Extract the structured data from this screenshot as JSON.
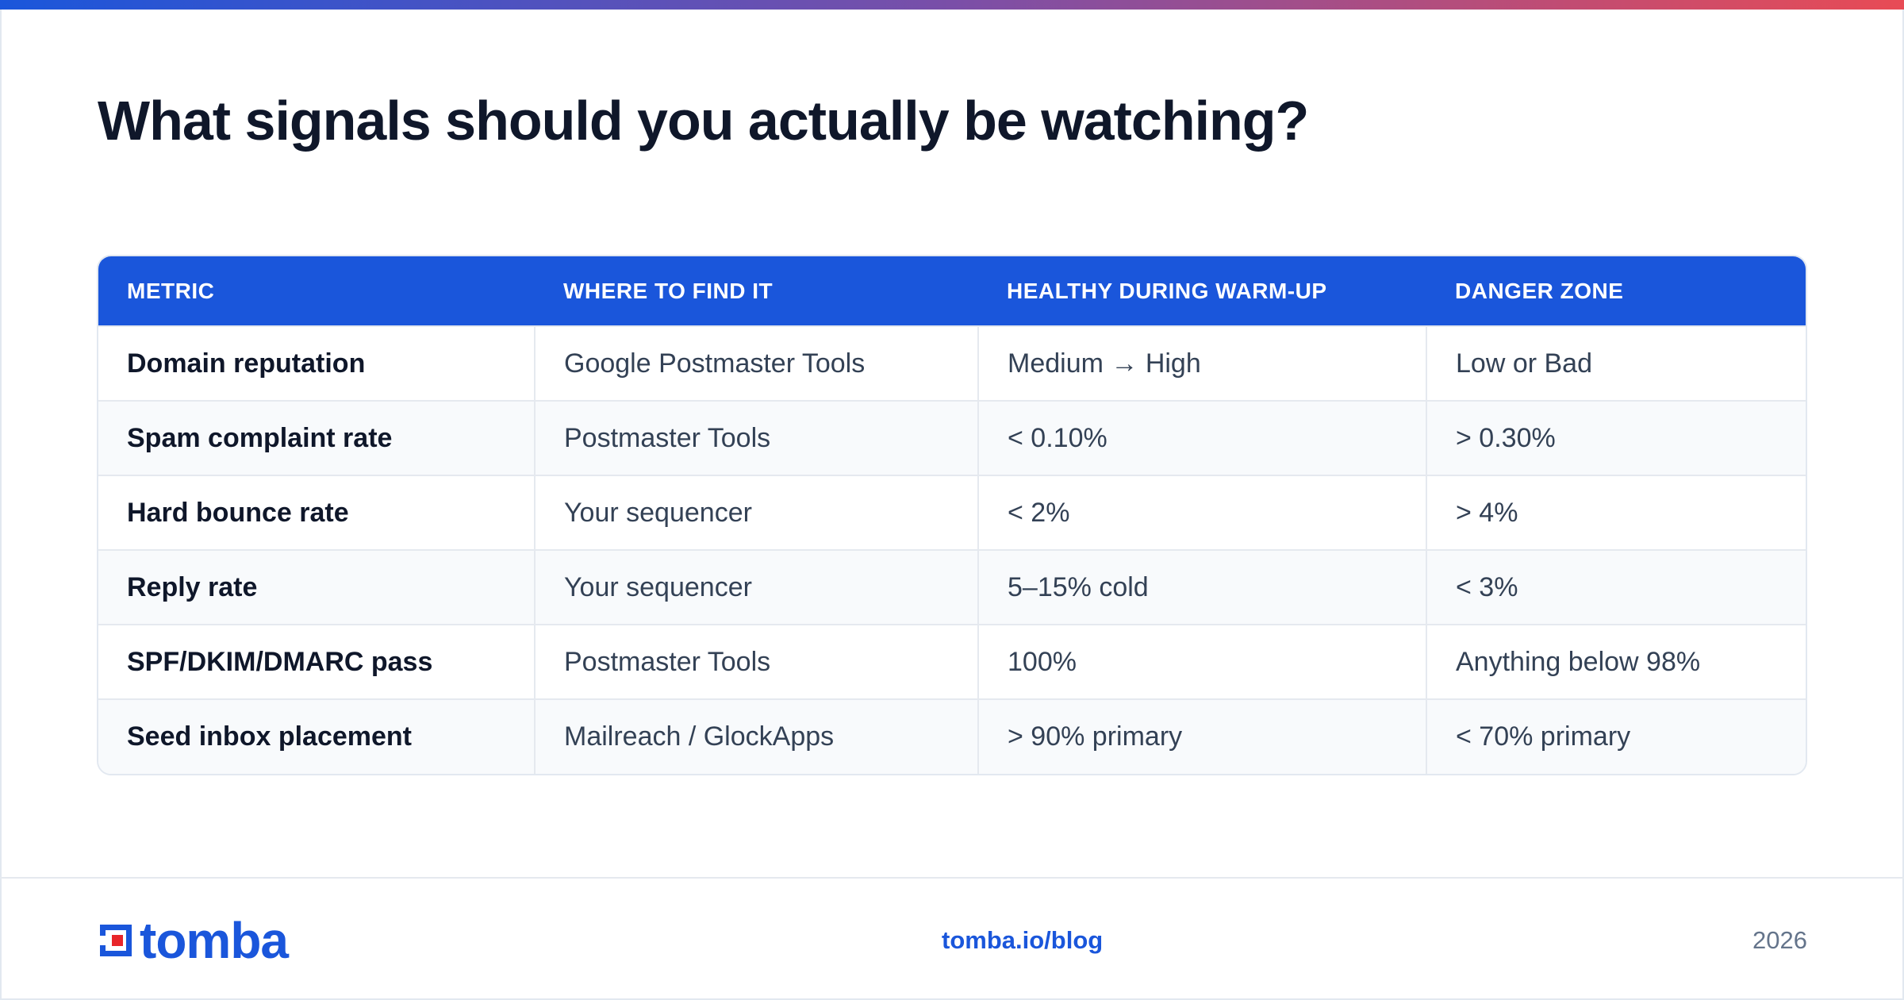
{
  "page": {
    "title": "What signals should you actually be watching?",
    "accent_gradient": [
      "#1a56db",
      "#7a4fa8",
      "#e84b55"
    ]
  },
  "table": {
    "headers": [
      "METRIC",
      "WHERE TO FIND IT",
      "HEALTHY DURING WARM-UP",
      "DANGER ZONE"
    ],
    "rows": [
      [
        "Domain reputation",
        "Google Postmaster Tools",
        "Medium → High",
        "Low or Bad"
      ],
      [
        "Spam complaint rate",
        "Postmaster Tools",
        "< 0.10%",
        "> 0.30%"
      ],
      [
        "Hard bounce rate",
        "Your sequencer",
        "< 2%",
        "> 4%"
      ],
      [
        "Reply rate",
        "Your sequencer",
        "5–15% cold",
        "< 3%"
      ],
      [
        "SPF/DKIM/DMARC pass",
        "Postmaster Tools",
        "100%",
        "Anything below 98%"
      ],
      [
        "Seed inbox placement",
        "Mailreach / GlockApps",
        "> 90% primary",
        "< 70% primary"
      ]
    ],
    "header_color": "#1a56db"
  },
  "footer": {
    "logo_text": "tomba",
    "logo_icon": "tomba-logo-icon",
    "link": "tomba.io/blog",
    "year": "2026",
    "brand_color": "#1a56db",
    "logo_accent_color": "#e8252a"
  }
}
